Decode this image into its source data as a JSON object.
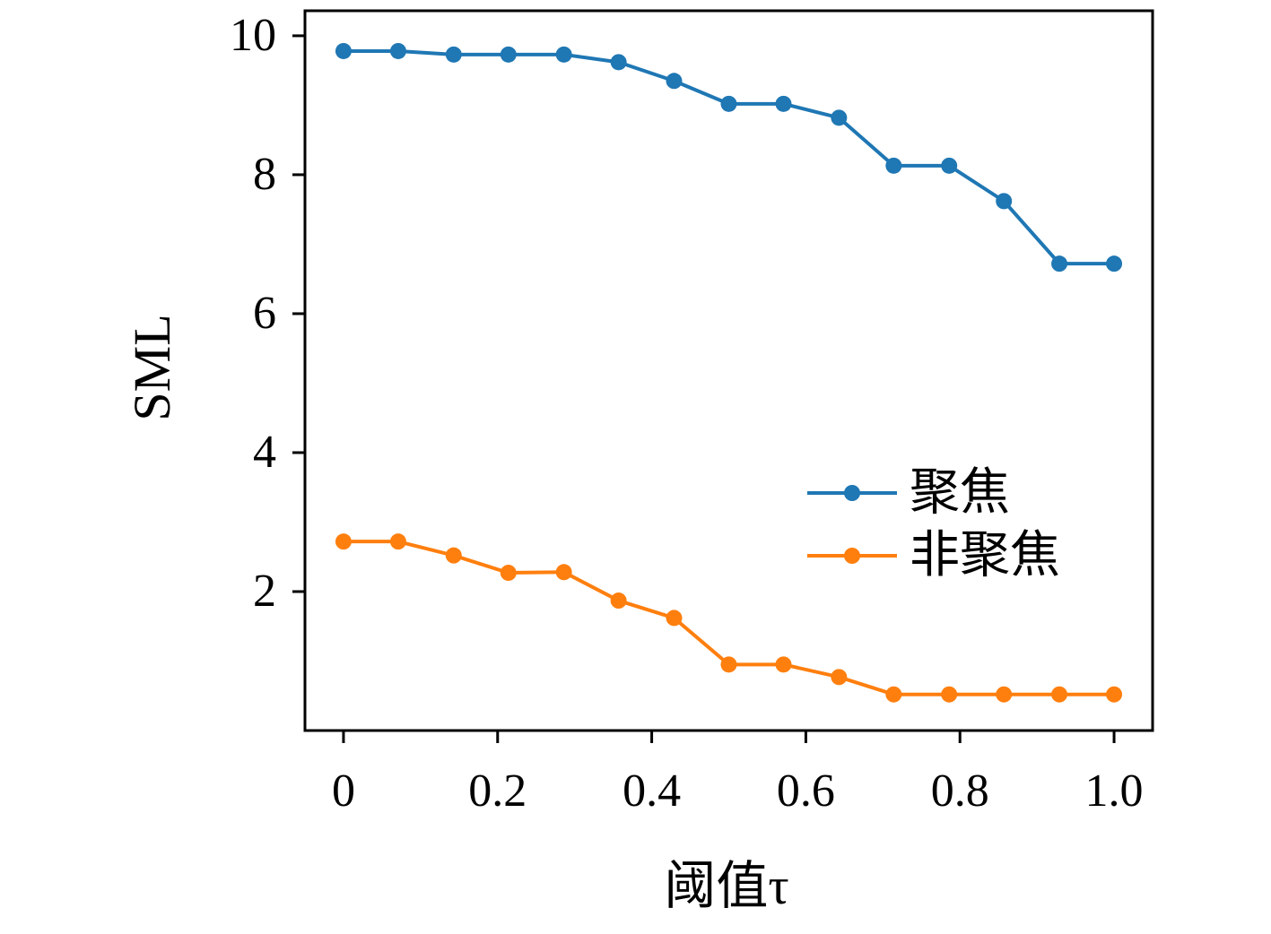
{
  "chart_data": {
    "type": "line",
    "title": "",
    "xlabel": "阈值τ",
    "ylabel": "SML",
    "x": [
      0,
      0.071,
      0.143,
      0.214,
      0.286,
      0.357,
      0.429,
      0.5,
      0.571,
      0.643,
      0.714,
      0.786,
      0.857,
      0.929,
      1.0
    ],
    "series": [
      {
        "name": "聚焦",
        "color": "#1f77b4",
        "values": [
          9.78,
          9.78,
          9.73,
          9.73,
          9.73,
          9.62,
          9.35,
          9.02,
          9.02,
          8.82,
          8.13,
          8.13,
          7.62,
          6.72,
          6.72
        ]
      },
      {
        "name": "非聚焦",
        "color": "#ff7f0e",
        "values": [
          2.72,
          2.72,
          2.52,
          2.27,
          2.28,
          1.87,
          1.62,
          0.95,
          0.95,
          0.77,
          0.52,
          0.52,
          0.52,
          0.52,
          0.52
        ]
      }
    ],
    "xlim": [
      -0.05,
      1.05
    ],
    "ylim": [
      0,
      10.36
    ],
    "xticks": [
      0,
      0.2,
      0.4,
      0.6,
      0.8,
      1.0
    ],
    "xtick_labels": [
      "0",
      "0.2",
      "0.4",
      "0.6",
      "0.8",
      "1.0"
    ],
    "yticks": [
      2,
      4,
      6,
      8,
      10
    ],
    "ytick_labels": [
      "2",
      "4",
      "6",
      "8",
      "10"
    ],
    "grid": false,
    "legend_position": "lower-right-inside",
    "axis_color": "#000000",
    "marker": "circle",
    "marker_radius": 9,
    "line_width": 4
  }
}
